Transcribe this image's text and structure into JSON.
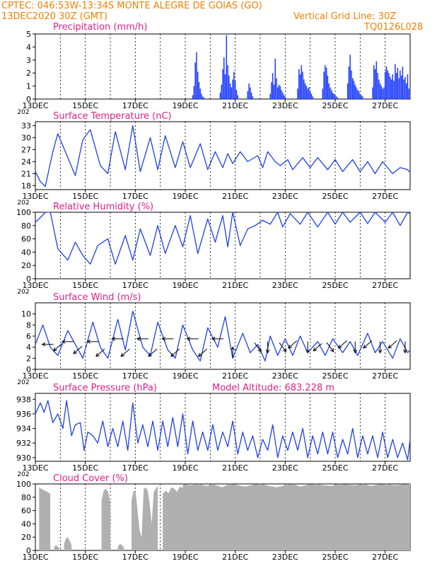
{
  "header": {
    "line1": "CPTEC:   046:53W-13:34S   MONTE ALEGRE DE GOIAS (GO)",
    "line2": "13DEC2020 30Z (GMT)",
    "grid_note": "Vertical Grid Line: 30Z",
    "code": "TQ0126L028",
    "model_altitude": "Model Altitude: 683.228 m"
  },
  "colors": {
    "title": "#e0208a",
    "header": "#f08000",
    "line": "#2040e8",
    "precip": "#1e3cff",
    "cloud": "#b0b0b0",
    "axis": "#000000"
  },
  "x_axis": {
    "start_day": 13,
    "end_day": 28,
    "tick_labels": [
      "13DEC",
      "15DEC",
      "17DEC",
      "19DEC",
      "21DEC",
      "23DEC",
      "25DEC",
      "27DEC"
    ],
    "tick_days": [
      13,
      15,
      17,
      19,
      21,
      23,
      25,
      27
    ],
    "gridline_days": [
      14,
      15,
      16,
      17,
      18,
      19,
      20,
      21,
      22,
      23,
      24,
      25,
      26,
      27
    ],
    "cut_year": "202"
  },
  "chart_data": [
    {
      "type": "bar",
      "title": "Precipitation (mm/h)",
      "ylim": [
        0,
        5
      ],
      "yticks": [
        0,
        1,
        2,
        3,
        4,
        5
      ],
      "x": [
        19.3,
        19.35,
        19.4,
        19.45,
        19.5,
        19.55,
        19.6,
        19.65,
        19.7,
        19.75,
        20.4,
        20.45,
        20.5,
        20.55,
        20.6,
        20.65,
        20.7,
        20.75,
        20.8,
        20.85,
        20.9,
        20.95,
        21.0,
        21.05,
        21.1,
        21.5,
        21.55,
        21.6,
        21.65,
        21.7,
        22.4,
        22.45,
        22.5,
        22.55,
        22.6,
        22.65,
        22.7,
        22.75,
        22.8,
        22.85,
        22.9,
        22.95,
        23.0,
        23.5,
        23.55,
        23.6,
        23.65,
        23.7,
        23.75,
        23.8,
        23.85,
        23.9,
        23.95,
        24.0,
        24.05,
        24.1,
        24.5,
        24.55,
        24.6,
        24.65,
        24.7,
        24.75,
        24.8,
        24.85,
        24.9,
        24.95,
        25.0,
        25.05,
        25.1,
        25.5,
        25.55,
        25.6,
        25.65,
        25.7,
        25.75,
        25.8,
        25.85,
        25.9,
        25.95,
        26.0,
        26.05,
        26.1,
        26.5,
        26.55,
        26.6,
        26.65,
        26.7,
        26.75,
        26.8,
        26.85,
        26.9,
        26.95,
        27.0,
        27.05,
        27.1,
        27.15,
        27.2,
        27.25,
        27.3,
        27.35,
        27.4,
        27.45,
        27.5,
        27.55,
        27.6,
        27.65,
        27.7,
        27.75,
        27.8,
        27.85,
        27.9,
        27.95
      ],
      "values": [
        0.3,
        1.0,
        2.8,
        3.6,
        2.1,
        1.3,
        0.8,
        0.4,
        0.2,
        0.1,
        0.5,
        1.1,
        2.3,
        3.2,
        1.9,
        4.9,
        2.6,
        1.8,
        1.2,
        0.9,
        1.5,
        2.1,
        1.4,
        0.7,
        0.3,
        0.6,
        1.2,
        0.9,
        0.5,
        0.2,
        0.4,
        1.3,
        2.0,
        1.1,
        3.1,
        1.6,
        0.9,
        1.1,
        1.0,
        0.7,
        0.5,
        0.3,
        0.2,
        0.8,
        2.3,
        1.9,
        2.6,
        2.1,
        1.5,
        1.2,
        1.0,
        0.8,
        0.9,
        0.6,
        0.4,
        0.2,
        0.8,
        2.1,
        2.6,
        2.4,
        1.8,
        1.2,
        0.9,
        0.7,
        0.5,
        0.4,
        0.3,
        0.2,
        0.1,
        1.2,
        2.5,
        3.4,
        2.2,
        1.6,
        1.4,
        1.1,
        0.9,
        0.7,
        0.6,
        0.4,
        0.3,
        0.2,
        0.9,
        2.6,
        2.3,
        2.9,
        2.0,
        1.5,
        1.2,
        1.0,
        0.8,
        0.9,
        2.1,
        2.5,
        2.2,
        2.0,
        1.7,
        1.5,
        1.9,
        1.4,
        2.7,
        2.0,
        2.4,
        1.6,
        2.2,
        1.8,
        2.5,
        1.5,
        1.7,
        1.2,
        1.9,
        0.8
      ]
    },
    {
      "type": "line",
      "title": "Surface Temperature (nC)",
      "ylim": [
        17,
        34
      ],
      "yticks": [
        18,
        21,
        24,
        27,
        30,
        33
      ],
      "x": [
        13.0,
        13.2,
        13.4,
        13.7,
        13.9,
        14.3,
        14.6,
        14.9,
        15.2,
        15.6,
        15.9,
        16.2,
        16.6,
        16.9,
        17.2,
        17.6,
        17.9,
        18.2,
        18.6,
        18.9,
        19.2,
        19.6,
        19.9,
        20.2,
        20.5,
        20.7,
        20.9,
        21.2,
        21.5,
        21.9,
        22.1,
        22.3,
        22.6,
        22.8,
        23.1,
        23.3,
        23.7,
        24.0,
        24.3,
        24.7,
        25.0,
        25.3,
        25.7,
        26.0,
        26.3,
        26.6,
        26.9,
        27.3,
        27.6,
        27.9,
        28.0
      ],
      "y": [
        21.5,
        19.0,
        17.8,
        26.5,
        31.0,
        25.0,
        20.5,
        29.5,
        32.0,
        23.0,
        21.0,
        31.5,
        22.0,
        33.0,
        21.5,
        30.0,
        22.0,
        30.5,
        22.5,
        29.0,
        22.5,
        28.5,
        22.0,
        26.5,
        22.5,
        26.0,
        23.5,
        26.5,
        24.0,
        25.5,
        22.5,
        26.5,
        24.0,
        23.0,
        24.5,
        22.0,
        25.0,
        22.5,
        25.0,
        22.0,
        24.5,
        21.5,
        24.5,
        21.5,
        24.0,
        21.0,
        24.0,
        21.0,
        22.5,
        22.0,
        21.3
      ]
    },
    {
      "type": "line",
      "title": "Relative Humidity (%)",
      "ylim": [
        0,
        100
      ],
      "yticks": [
        0,
        20,
        40,
        60,
        80,
        100
      ],
      "x": [
        13.0,
        13.2,
        13.4,
        13.6,
        13.9,
        14.3,
        14.6,
        14.9,
        15.2,
        15.5,
        15.9,
        16.2,
        16.6,
        16.9,
        17.2,
        17.6,
        17.9,
        18.2,
        18.6,
        18.9,
        19.2,
        19.5,
        19.9,
        20.2,
        20.5,
        20.7,
        20.9,
        21.2,
        21.5,
        21.8,
        22.1,
        22.4,
        22.7,
        22.9,
        23.2,
        23.6,
        23.9,
        24.3,
        24.7,
        25.0,
        25.3,
        25.6,
        26.0,
        26.3,
        26.6,
        27.0,
        27.3,
        27.6,
        27.9,
        28.0
      ],
      "y": [
        85,
        92,
        100,
        100,
        45,
        28,
        55,
        35,
        22,
        50,
        60,
        22,
        65,
        28,
        75,
        35,
        80,
        38,
        80,
        48,
        95,
        38,
        90,
        55,
        95,
        48,
        100,
        50,
        75,
        80,
        88,
        82,
        100,
        78,
        98,
        82,
        100,
        78,
        100,
        82,
        100,
        85,
        100,
        83,
        100,
        85,
        100,
        80,
        100,
        98
      ]
    },
    {
      "type": "line",
      "title": "Surface Wind (m/s)",
      "ylim": [
        0,
        12
      ],
      "yticks": [
        0,
        2,
        4,
        6,
        8,
        10
      ],
      "x": [
        13.0,
        13.3,
        13.6,
        13.9,
        14.3,
        14.6,
        14.9,
        15.3,
        15.6,
        15.9,
        16.3,
        16.6,
        16.9,
        17.3,
        17.6,
        17.9,
        18.3,
        18.6,
        18.9,
        19.3,
        19.6,
        19.9,
        20.3,
        20.6,
        20.9,
        21.3,
        21.6,
        21.9,
        22.2,
        22.4,
        22.7,
        23.0,
        23.3,
        23.6,
        23.9,
        24.3,
        24.6,
        24.9,
        25.3,
        25.6,
        25.9,
        26.3,
        26.6,
        26.9,
        27.3,
        27.6,
        27.9,
        28.0
      ],
      "y": [
        4.5,
        8.0,
        4.0,
        2.5,
        7.0,
        4.5,
        2.0,
        8.5,
        4.0,
        2.0,
        9.0,
        3.5,
        10.5,
        4.0,
        2.5,
        8.5,
        3.5,
        2.0,
        8.0,
        3.5,
        1.5,
        7.5,
        4.0,
        9.5,
        2.0,
        6.5,
        3.0,
        4.5,
        1.5,
        6.0,
        2.5,
        5.5,
        2.5,
        6.0,
        3.0,
        5.0,
        2.5,
        5.5,
        3.0,
        5.0,
        2.5,
        6.5,
        3.0,
        5.0,
        2.0,
        5.5,
        3.0,
        3.5
      ],
      "barbs": [
        {
          "day": 13.5,
          "speed": 4.5,
          "dir": "E"
        },
        {
          "day": 13.9,
          "speed": 4.0,
          "dir": "NE"
        },
        {
          "day": 14.3,
          "speed": 5.0,
          "dir": "E"
        },
        {
          "day": 14.7,
          "speed": 3.5,
          "dir": "NE"
        },
        {
          "day": 15.3,
          "speed": 5.0,
          "dir": "E"
        },
        {
          "day": 15.6,
          "speed": 3.0,
          "dir": "NE"
        },
        {
          "day": 16.3,
          "speed": 5.5,
          "dir": "E"
        },
        {
          "day": 16.6,
          "speed": 3.0,
          "dir": "NE"
        },
        {
          "day": 17.3,
          "speed": 5.5,
          "dir": "E"
        },
        {
          "day": 17.7,
          "speed": 3.0,
          "dir": "NE"
        },
        {
          "day": 18.3,
          "speed": 5.5,
          "dir": "E"
        },
        {
          "day": 18.6,
          "speed": 3.0,
          "dir": "NE"
        },
        {
          "day": 19.3,
          "speed": 5.5,
          "dir": "E"
        },
        {
          "day": 19.7,
          "speed": 3.0,
          "dir": "NE"
        },
        {
          "day": 20.3,
          "speed": 5.5,
          "dir": "E"
        },
        {
          "day": 20.9,
          "speed": 3.0,
          "dir": "S"
        },
        {
          "day": 21.9,
          "speed": 4.0,
          "dir": "NW"
        },
        {
          "day": 22.3,
          "speed": 4.0,
          "dir": "N"
        },
        {
          "day": 22.9,
          "speed": 4.0,
          "dir": "NW"
        },
        {
          "day": 23.3,
          "speed": 4.5,
          "dir": "NE"
        },
        {
          "day": 23.9,
          "speed": 4.0,
          "dir": "N"
        },
        {
          "day": 24.3,
          "speed": 4.0,
          "dir": "NE"
        },
        {
          "day": 24.8,
          "speed": 4.0,
          "dir": "NW"
        },
        {
          "day": 25.3,
          "speed": 4.5,
          "dir": "NE"
        },
        {
          "day": 25.8,
          "speed": 4.0,
          "dir": "N"
        },
        {
          "day": 26.3,
          "speed": 4.5,
          "dir": "NE"
        },
        {
          "day": 26.8,
          "speed": 4.0,
          "dir": "N"
        },
        {
          "day": 27.3,
          "speed": 4.5,
          "dir": "NE"
        },
        {
          "day": 27.8,
          "speed": 4.0,
          "dir": "N"
        }
      ]
    },
    {
      "type": "line",
      "title": "Surface Pressure (hPa)",
      "ylim": [
        929.5,
        938.8
      ],
      "yticks": [
        930,
        932,
        934,
        936,
        938
      ],
      "x": [
        13.0,
        13.2,
        13.35,
        13.5,
        13.7,
        13.9,
        14.1,
        14.25,
        14.45,
        14.6,
        14.8,
        14.95,
        15.1,
        15.3,
        15.5,
        15.7,
        15.9,
        16.1,
        16.3,
        16.5,
        16.7,
        16.9,
        17.1,
        17.3,
        17.5,
        17.7,
        17.9,
        18.1,
        18.3,
        18.5,
        18.7,
        18.9,
        19.1,
        19.3,
        19.5,
        19.7,
        19.9,
        20.1,
        20.3,
        20.5,
        20.7,
        20.9,
        21.1,
        21.3,
        21.5,
        21.7,
        21.9,
        22.1,
        22.3,
        22.5,
        22.7,
        22.9,
        23.1,
        23.3,
        23.5,
        23.7,
        23.9,
        24.1,
        24.3,
        24.5,
        24.7,
        24.9,
        25.1,
        25.3,
        25.5,
        25.7,
        25.9,
        26.1,
        26.3,
        26.5,
        26.7,
        26.9,
        27.1,
        27.3,
        27.5,
        27.7,
        27.9,
        28.0
      ],
      "y": [
        936.0,
        937.5,
        936.2,
        937.8,
        934.8,
        936.0,
        934.0,
        937.8,
        933.0,
        934.5,
        934.8,
        931.0,
        933.5,
        933.0,
        932.0,
        935.0,
        931.5,
        934.0,
        931.5,
        935.0,
        931.0,
        937.5,
        932.0,
        934.5,
        931.5,
        935.0,
        931.0,
        935.0,
        931.5,
        935.5,
        931.5,
        936.0,
        930.5,
        935.0,
        931.0,
        933.5,
        931.0,
        934.5,
        931.0,
        933.5,
        931.5,
        935.0,
        930.5,
        933.5,
        931.0,
        933.0,
        930.0,
        932.5,
        931.0,
        934.5,
        930.0,
        933.0,
        931.0,
        933.5,
        931.0,
        934.0,
        930.0,
        933.0,
        930.5,
        933.5,
        930.5,
        933.5,
        930.0,
        932.5,
        930.5,
        934.0,
        930.0,
        933.0,
        930.5,
        933.0,
        930.0,
        933.5,
        930.0,
        932.5,
        930.0,
        932.0,
        929.7,
        932.5
      ]
    },
    {
      "type": "area",
      "title": "Cloud Cover (%)",
      "ylim": [
        0,
        100
      ],
      "yticks": [
        0,
        20,
        40,
        60,
        80,
        100
      ],
      "segments": [
        {
          "from": 13.15,
          "to": 13.6,
          "values": [
            95,
            92,
            90,
            88,
            85
          ]
        },
        {
          "from": 13.75,
          "to": 13.95,
          "values": [
            5,
            8,
            6,
            4
          ]
        },
        {
          "from": 14.15,
          "to": 14.45,
          "values": [
            10,
            18,
            20,
            14,
            8
          ]
        },
        {
          "from": 15.65,
          "to": 16.0,
          "values": [
            75,
            90,
            93,
            88,
            70
          ]
        },
        {
          "from": 16.3,
          "to": 16.55,
          "values": [
            5,
            10,
            8,
            4
          ]
        },
        {
          "from": 16.85,
          "to": 17.9,
          "values": [
            75,
            90,
            88,
            60,
            30,
            20,
            92,
            95,
            90,
            70,
            40,
            88,
            93,
            97
          ]
        },
        {
          "from": 18.1,
          "to": 18.9,
          "values": [
            85,
            90,
            86,
            95,
            93,
            88,
            96,
            94
          ]
        },
        {
          "from": 18.9,
          "to": 28.0,
          "values": [
            100,
            98,
            100,
            97,
            99,
            95,
            100,
            98,
            96,
            99,
            100,
            97,
            95,
            98,
            100,
            96,
            99,
            100,
            98,
            97,
            100,
            99,
            98,
            100,
            97,
            99,
            100,
            98,
            99,
            100
          ]
        }
      ]
    }
  ]
}
